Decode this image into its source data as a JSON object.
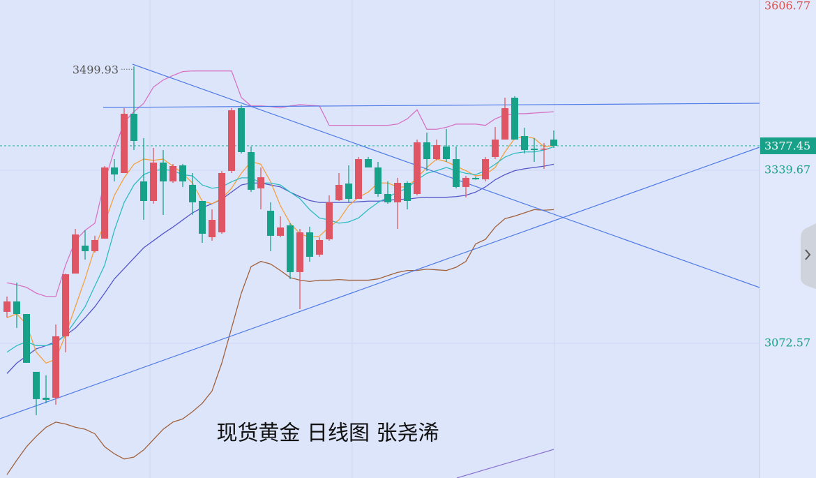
{
  "chart_data": {
    "type": "candlestick",
    "title": "现货黄金 日线图 张尧浠",
    "categories": [
      null,
      null,
      null,
      null,
      null,
      null,
      null,
      null,
      null,
      null,
      null,
      null,
      null,
      null,
      null,
      null,
      null,
      null,
      null,
      null,
      null,
      null,
      null,
      null,
      null,
      null,
      null,
      null,
      null,
      null,
      null,
      null,
      null,
      null,
      null,
      null,
      null,
      null,
      null,
      null,
      null,
      null,
      null,
      null,
      null,
      null,
      null,
      null,
      null,
      null,
      null,
      null,
      null,
      null,
      null,
      null,
      null
    ],
    "open": [
      3121.1,
      3137.2,
      3117.8,
      3028.5,
      2988.6,
      2988.6,
      3083.4,
      3180.3,
      3223.4,
      3214.8,
      3234.2,
      3344.0,
      3335.4,
      3426.9,
      3322.5,
      3292.3,
      3351.6,
      3322.5,
      3347.3,
      3317.1,
      3292.3,
      3236.3,
      3243.9,
      3338.6,
      3435.6,
      3367.7,
      3311.7,
      3277.2,
      3238.5,
      3254.6,
      3182.5,
      3243.9,
      3209.4,
      3233.1,
      3293.4,
      3319.2,
      3295.5,
      3356.9,
      3344.0,
      3303.1,
      3290.2,
      3320.3,
      3303.1,
      3382.8,
      3356.9,
      3376.3,
      3356.9,
      3313.9,
      3327.9,
      3325.7,
      3360.2,
      3387.1,
      3451.7,
      3392.5,
      3373.1,
      3373.1,
      3387.1
    ],
    "high": [
      3144.8,
      3166.3,
      3117.8,
      3028.5,
      3023.1,
      3101.7,
      3180.3,
      3249.2,
      3247.1,
      3238.5,
      3346.2,
      3356.9,
      3435.6,
      3499.93,
      3389.3,
      3374.2,
      3370.9,
      3349.4,
      3349.4,
      3335.4,
      3292.3,
      3279.4,
      3338.6,
      3435.6,
      3440.9,
      3376.3,
      3344.0,
      3290.2,
      3268.6,
      3257.9,
      3249.2,
      3252.5,
      3236.3,
      3300.9,
      3335.4,
      3347.3,
      3360.2,
      3360.2,
      3352.6,
      3322.5,
      3327.9,
      3322.5,
      3387.1,
      3397.9,
      3387.1,
      3403.3,
      3376.3,
      3331.1,
      3330.0,
      3360.2,
      3406.5,
      3451.7,
      3453.9,
      3405.4,
      3389.3,
      3381.7,
      3401.1
    ],
    "low": [
      3112.5,
      3096.3,
      3042.5,
      2961.7,
      2980.0,
      2977.8,
      3058.6,
      3180.3,
      3201.9,
      3212.6,
      3234.2,
      3322.5,
      3335.4,
      3370.9,
      3263.2,
      3288.0,
      3270.8,
      3320.3,
      3313.9,
      3270.8,
      3227.7,
      3230.9,
      3241.7,
      3335.4,
      3365.6,
      3306.3,
      3279.4,
      3214.8,
      3236.3,
      3171.7,
      3125.4,
      3198.6,
      3206.2,
      3230.9,
      3292.3,
      3290.2,
      3295.5,
      3344.0,
      3298.8,
      3288.0,
      3249.2,
      3279.4,
      3300.9,
      3338.6,
      3354.8,
      3352.6,
      3311.7,
      3297.7,
      3325.0,
      3322.5,
      3356.9,
      3387.1,
      3387.1,
      3365.6,
      3352.6,
      3341.9,
      3374.2
    ],
    "close": [
      3137.2,
      3117.8,
      3042.5,
      2986.5,
      2985.4,
      3083.4,
      3179.2,
      3240.6,
      3214.8,
      3232.0,
      3344.0,
      3333.2,
      3426.9,
      3384.9,
      3292.3,
      3351.6,
      3322.5,
      3346.2,
      3322.5,
      3290.2,
      3241.7,
      3263.2,
      3335.4,
      3432.3,
      3367.7,
      3309.6,
      3328.9,
      3238.5,
      3251.4,
      3182.5,
      3243.9,
      3206.2,
      3232.0,
      3290.2,
      3317.1,
      3295.5,
      3356.9,
      3344.0,
      3303.1,
      3290.2,
      3320.3,
      3292.3,
      3382.8,
      3356.9,
      3378.5,
      3356.9,
      3313.9,
      3327.9,
      3325.7,
      3356.9,
      3387.1,
      3435.6,
      3387.1,
      3370.9,
      3370.9,
      3373.1,
      3377.45
    ],
    "up_color": "#e05563",
    "down_color": "#17a189",
    "overlays": [
      {
        "color": "#d773c4",
        "values": [
          3166,
          3163,
          3159,
          3150,
          3145,
          3145,
          3193,
          3231,
          3247,
          3258,
          3322,
          3371,
          3414,
          3430,
          3443,
          3468,
          3479,
          3486,
          3492,
          3493,
          3493,
          3493,
          3493,
          3493,
          3452,
          3439,
          3439,
          3438,
          3436,
          3439,
          3441,
          3440,
          3439,
          3409,
          3409,
          3409,
          3409,
          3409,
          3409,
          3409,
          3411,
          3419,
          3433,
          3403,
          3403,
          3406,
          3411,
          3411,
          3411,
          3409,
          3419,
          3425,
          3427,
          3427,
          3428,
          3429,
          3430
        ]
      },
      {
        "color": "#5456c8",
        "values": [
          3026,
          3042,
          3053,
          3064,
          3069,
          3075,
          3085,
          3096,
          3112,
          3129,
          3150,
          3172,
          3188,
          3204,
          3220,
          3231,
          3242,
          3252,
          3263,
          3274,
          3282,
          3288,
          3295,
          3306,
          3317,
          3320,
          3320,
          3317,
          3314,
          3306,
          3299,
          3293,
          3290,
          3290,
          3290,
          3290,
          3291,
          3292,
          3292,
          3293,
          3295,
          3295,
          3297,
          3298,
          3298,
          3298,
          3299,
          3301,
          3306,
          3314,
          3325,
          3333,
          3339,
          3342,
          3344,
          3346,
          3349
        ]
      },
      {
        "color": "#a0603a",
        "values": [
          2870,
          2892,
          2913,
          2929,
          2943,
          2951,
          2948,
          2943,
          2940,
          2933,
          2913,
          2902,
          2894,
          2897,
          2908,
          2924,
          2940,
          2951,
          2956,
          2967,
          2980,
          2999,
          3042,
          3096,
          3150,
          3191,
          3199,
          3195,
          3185,
          3174,
          3170,
          3168,
          3170,
          3170,
          3171,
          3170,
          3170,
          3170,
          3172,
          3177,
          3182,
          3185,
          3185,
          3187,
          3186,
          3185,
          3190,
          3199,
          3226,
          3233,
          3252,
          3265,
          3269,
          3274,
          3279,
          3278,
          3279
        ]
      },
      {
        "color": "#f5a03c",
        "values": [
          3112,
          3118,
          3102,
          3059,
          3042,
          3048,
          3086,
          3129,
          3172,
          3220,
          3258,
          3301,
          3328,
          3349,
          3357,
          3355,
          3357,
          3346,
          3335,
          3320,
          3292,
          3288,
          3296,
          3312,
          3335,
          3353,
          3349,
          3322,
          3285,
          3258,
          3242,
          3236,
          3238,
          3252,
          3263,
          3285,
          3298,
          3306,
          3320,
          3320,
          3314,
          3314,
          3328,
          3344,
          3357,
          3353,
          3346,
          3339,
          3331,
          3333,
          3344,
          3368,
          3389,
          3392,
          3389,
          3376,
          3378
        ]
      },
      {
        "color": "#2cbcc0",
        "values": [
          3059,
          3069,
          3075,
          3069,
          3069,
          3073,
          3086,
          3107,
          3129,
          3161,
          3193,
          3247,
          3290,
          3317,
          3333,
          3339,
          3341,
          3339,
          3333,
          3331,
          3317,
          3312,
          3314,
          3322,
          3328,
          3328,
          3320,
          3320,
          3317,
          3306,
          3296,
          3279,
          3266,
          3263,
          3258,
          3260,
          3266,
          3279,
          3290,
          3298,
          3306,
          3312,
          3325,
          3335,
          3339,
          3344,
          3339,
          3335,
          3333,
          3339,
          3349,
          3360,
          3366,
          3368,
          3368,
          3371,
          3376
        ]
      }
    ],
    "ylim": [
      2864.7,
      3602.5
    ],
    "yticks": [
      3606.77,
      3339.67,
      3072.57
    ],
    "ytick_colors": [
      "#d9534f",
      "#17a189",
      "#17a189"
    ],
    "current_price": 3377.45,
    "current_price_color": "#17a189",
    "grid": true
  }
}
